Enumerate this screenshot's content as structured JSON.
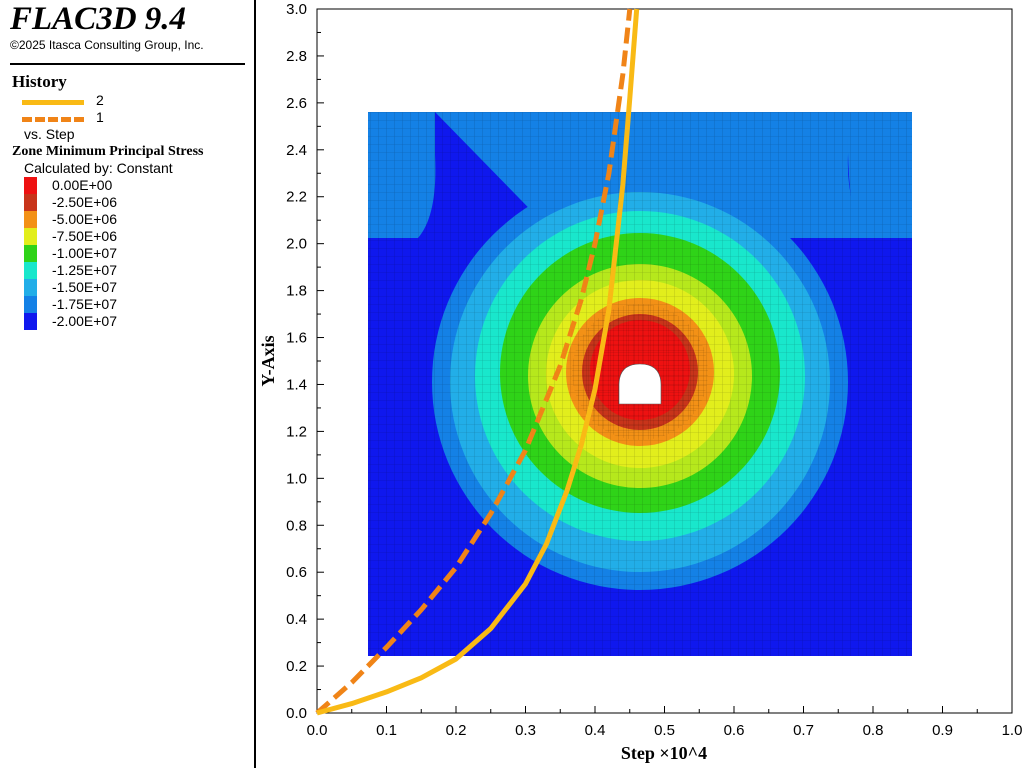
{
  "app": {
    "title": "FLAC3D 9.4",
    "copyright": "©2025 Itasca Consulting Group, Inc."
  },
  "legend": {
    "history_heading": "History",
    "histories": [
      {
        "label": "2",
        "style": "solid",
        "color": "#F9BA15"
      },
      {
        "label": "1",
        "style": "dashed",
        "color": "#F08417"
      }
    ],
    "vs_label": "vs. Step",
    "contour_heading": "Zone Minimum Principal Stress",
    "calculated_by": "Calculated by: Constant",
    "scale": [
      {
        "value": "0.00E+00",
        "color": "#EE1111"
      },
      {
        "value": "-2.50E+06",
        "color": "#C8341A"
      },
      {
        "value": "-5.00E+06",
        "color": "#F39116"
      },
      {
        "value": "-7.50E+06",
        "color": "#E2EE1C"
      },
      {
        "value": "-1.00E+07",
        "color": "#2FD318"
      },
      {
        "value": "-1.25E+07",
        "color": "#19E7CC"
      },
      {
        "value": "-1.50E+07",
        "color": "#22AEE8"
      },
      {
        "value": "-1.75E+07",
        "color": "#1481E6"
      },
      {
        "value": "-2.00E+07",
        "color": "#0F18EE"
      }
    ]
  },
  "chart_data": {
    "type": "line",
    "xlabel": "Step ×10^4",
    "ylabel": "Y-Axis",
    "xlim": [
      0.0,
      1.0
    ],
    "ylim": [
      0.0,
      3.0
    ],
    "xticks": [
      "0.0",
      "0.1",
      "0.2",
      "0.3",
      "0.4",
      "0.5",
      "0.6",
      "0.7",
      "0.8",
      "0.9",
      "1.0"
    ],
    "yticks": [
      "0.0",
      "0.2",
      "0.4",
      "0.6",
      "0.8",
      "1.0",
      "1.2",
      "1.4",
      "1.6",
      "1.8",
      "2.0",
      "2.2",
      "2.4",
      "2.6",
      "2.8",
      "3.0"
    ],
    "series": [
      {
        "name": "2",
        "style": "solid",
        "color": "#F9BA15",
        "x": [
          0.0,
          0.05,
          0.1,
          0.15,
          0.2,
          0.25,
          0.3,
          0.33,
          0.36,
          0.38,
          0.4,
          0.42,
          0.44,
          0.45,
          0.46
        ],
        "y": [
          0.0,
          0.04,
          0.09,
          0.15,
          0.23,
          0.36,
          0.55,
          0.72,
          0.95,
          1.14,
          1.38,
          1.72,
          2.25,
          2.62,
          3.0
        ]
      },
      {
        "name": "1",
        "style": "dashed",
        "color": "#F08417",
        "x": [
          0.0,
          0.05,
          0.1,
          0.15,
          0.2,
          0.25,
          0.3,
          0.35,
          0.38,
          0.4,
          0.42,
          0.44,
          0.45
        ],
        "y": [
          0.0,
          0.13,
          0.28,
          0.44,
          0.62,
          0.85,
          1.12,
          1.48,
          1.76,
          2.0,
          2.3,
          2.72,
          3.0
        ]
      }
    ]
  }
}
